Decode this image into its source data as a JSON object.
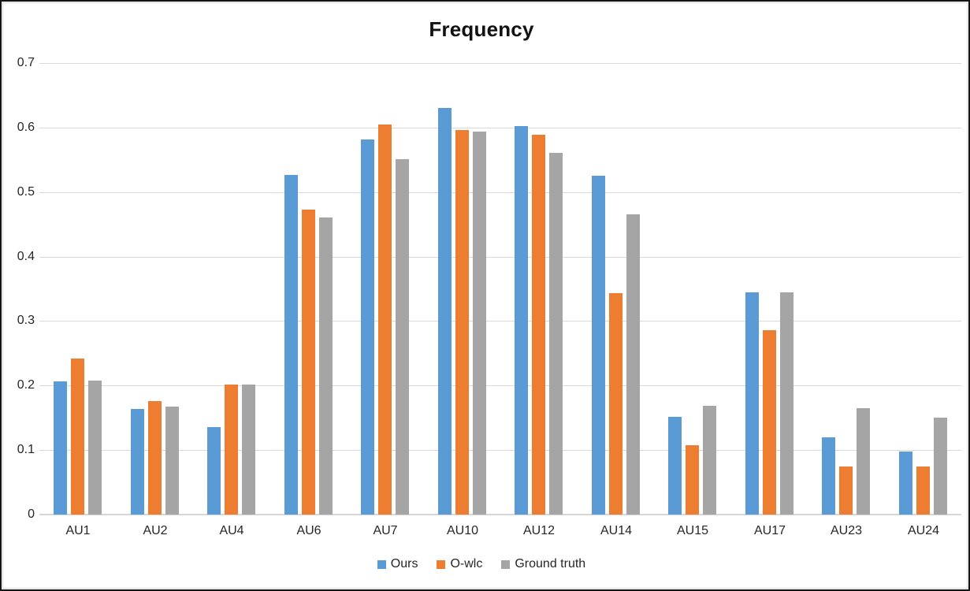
{
  "chart_data": {
    "type": "bar",
    "title": "Frequency",
    "categories": [
      "AU1",
      "AU2",
      "AU4",
      "AU6",
      "AU7",
      "AU10",
      "AU12",
      "AU14",
      "AU15",
      "AU17",
      "AU23",
      "AU24"
    ],
    "series": [
      {
        "name": "Ours",
        "color": "#5B9BD5",
        "values": [
          0.206,
          0.164,
          0.135,
          0.527,
          0.581,
          0.63,
          0.602,
          0.525,
          0.151,
          0.345,
          0.12,
          0.098
        ]
      },
      {
        "name": "O-wlc",
        "color": "#ED7D31",
        "values": [
          0.242,
          0.176,
          0.201,
          0.473,
          0.605,
          0.596,
          0.589,
          0.343,
          0.108,
          0.286,
          0.075,
          0.075
        ]
      },
      {
        "name": "Ground truth",
        "color": "#A5A5A5",
        "values": [
          0.208,
          0.167,
          0.202,
          0.461,
          0.551,
          0.594,
          0.561,
          0.466,
          0.169,
          0.344,
          0.165,
          0.15
        ]
      }
    ],
    "xlabel": "",
    "ylabel": "",
    "ylim": [
      0,
      0.7
    ],
    "ytick_labels": [
      "0",
      "0.1",
      "0.2",
      "0.3",
      "0.4",
      "0.5",
      "0.6",
      "0.7"
    ],
    "grid": true,
    "legend_position": "bottom",
    "grid_color": "#D9D9D9",
    "text_color": "#262626",
    "background_color": "#FFFFFF"
  }
}
